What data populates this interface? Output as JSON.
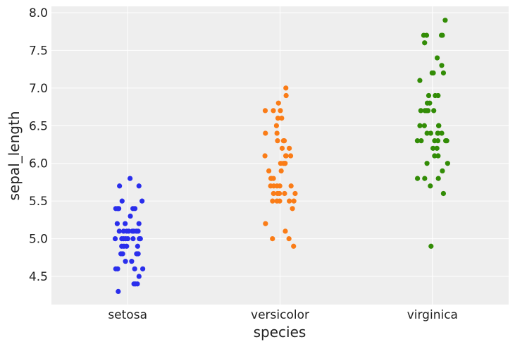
{
  "chart_data": {
    "type": "scatter",
    "subtype": "stripplot",
    "title": "",
    "xlabel": "species",
    "ylabel": "sepal_length",
    "categories": [
      "setosa",
      "versicolor",
      "virginica"
    ],
    "ylim": [
      4.126,
      8.084
    ],
    "yticks": [
      4.5,
      5.0,
      5.5,
      6.0,
      6.5,
      7.0,
      7.5,
      8.0
    ],
    "ytick_labels": [
      "4.5",
      "5.0",
      "5.5",
      "6.0",
      "6.5",
      "7.0",
      "7.5",
      "8.0"
    ],
    "grid": true,
    "background": "#eeeeee",
    "series": [
      {
        "category": "setosa",
        "color": "#2a2eec",
        "values": [
          5.1,
          4.9,
          4.7,
          4.6,
          5.0,
          5.4,
          4.6,
          5.0,
          4.4,
          4.9,
          5.4,
          4.8,
          4.8,
          4.3,
          5.8,
          5.7,
          5.4,
          5.1,
          5.7,
          5.1,
          5.4,
          5.1,
          4.6,
          5.1,
          4.8,
          5.0,
          5.0,
          5.2,
          5.2,
          4.7,
          4.8,
          5.4,
          5.2,
          5.5,
          4.9,
          5.0,
          5.5,
          4.9,
          4.4,
          5.1,
          5.0,
          4.5,
          4.4,
          5.0,
          5.1,
          4.8,
          5.1,
          4.6,
          5.3,
          5.0
        ]
      },
      {
        "category": "versicolor",
        "color": "#fa7c17",
        "values": [
          7.0,
          6.4,
          6.9,
          5.5,
          6.5,
          5.7,
          6.3,
          4.9,
          6.6,
          5.2,
          5.0,
          5.9,
          6.0,
          6.1,
          5.6,
          6.7,
          5.6,
          5.8,
          6.2,
          5.6,
          5.9,
          6.1,
          6.3,
          6.1,
          6.4,
          6.6,
          6.8,
          6.7,
          6.0,
          5.7,
          5.5,
          5.5,
          5.8,
          6.0,
          5.4,
          6.0,
          6.7,
          6.3,
          5.6,
          5.5,
          5.5,
          6.1,
          5.8,
          5.0,
          5.6,
          5.7,
          5.7,
          6.2,
          5.1,
          5.7
        ]
      },
      {
        "category": "virginica",
        "color": "#328c06",
        "values": [
          6.3,
          5.8,
          7.1,
          6.3,
          6.5,
          7.6,
          4.9,
          7.3,
          6.7,
          7.2,
          6.5,
          6.4,
          6.8,
          5.7,
          5.8,
          6.4,
          6.5,
          7.7,
          7.7,
          6.0,
          6.9,
          5.6,
          7.7,
          6.3,
          6.7,
          7.2,
          6.2,
          6.1,
          6.4,
          7.2,
          7.4,
          7.9,
          6.4,
          6.3,
          6.1,
          7.7,
          6.3,
          6.4,
          6.0,
          6.9,
          6.7,
          6.9,
          5.8,
          6.8,
          6.7,
          6.7,
          6.3,
          6.5,
          6.2,
          5.9
        ]
      }
    ]
  }
}
